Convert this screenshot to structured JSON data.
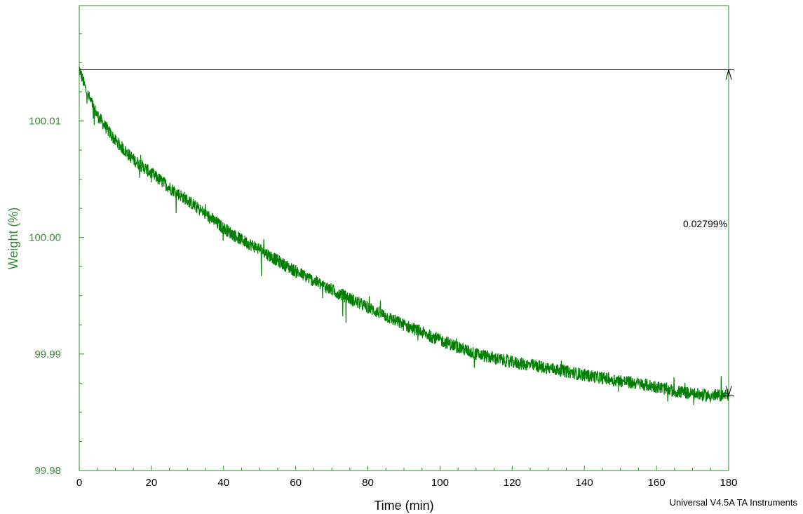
{
  "chart_data": {
    "type": "line",
    "title": "",
    "xlabel": "Time (min)",
    "ylabel": "Weight (%)",
    "xlim": [
      0,
      180
    ],
    "ylim": [
      99.98,
      100.0199
    ],
    "x_ticks": [
      0,
      20,
      40,
      60,
      80,
      100,
      120,
      140,
      160,
      180
    ],
    "x_tick_labels": [
      "0",
      "20",
      "40",
      "60",
      "80",
      "100",
      "120",
      "140",
      "160",
      "180"
    ],
    "y_ticks": [
      99.98,
      99.99,
      100.0,
      100.01
    ],
    "y_tick_labels": [
      "99.98",
      "99.99",
      "100.00",
      "100.01"
    ],
    "grid": false,
    "series": [
      {
        "x": [
          0,
          2,
          5,
          10,
          15,
          20,
          25,
          30,
          35,
          40,
          45,
          50,
          55,
          60,
          70,
          80,
          90,
          100,
          110,
          120,
          130,
          140,
          150,
          160,
          165,
          170,
          175,
          180
        ],
        "y": [
          100.0145,
          100.0125,
          100.0105,
          100.0083,
          100.0067,
          100.0055,
          100.0043,
          100.0032,
          100.002,
          100.0008,
          99.9998,
          99.999,
          99.998,
          99.9971,
          99.9955,
          99.994,
          99.9925,
          99.9912,
          99.99,
          99.9893,
          99.9888,
          99.9882,
          99.9877,
          99.9872,
          99.9868,
          99.9866,
          99.9864,
          99.9865
        ]
      }
    ],
    "annotation": {
      "label": "0.02799%",
      "upper_y": 100.01439,
      "lower_y": 99.9864,
      "x": 180
    },
    "colors": {
      "series": "#008000",
      "axis": "#2e8b2e",
      "ytext": "#3a8a3a",
      "annotation": "#000000"
    }
  },
  "footer": "Universal V4.5A TA Instruments"
}
